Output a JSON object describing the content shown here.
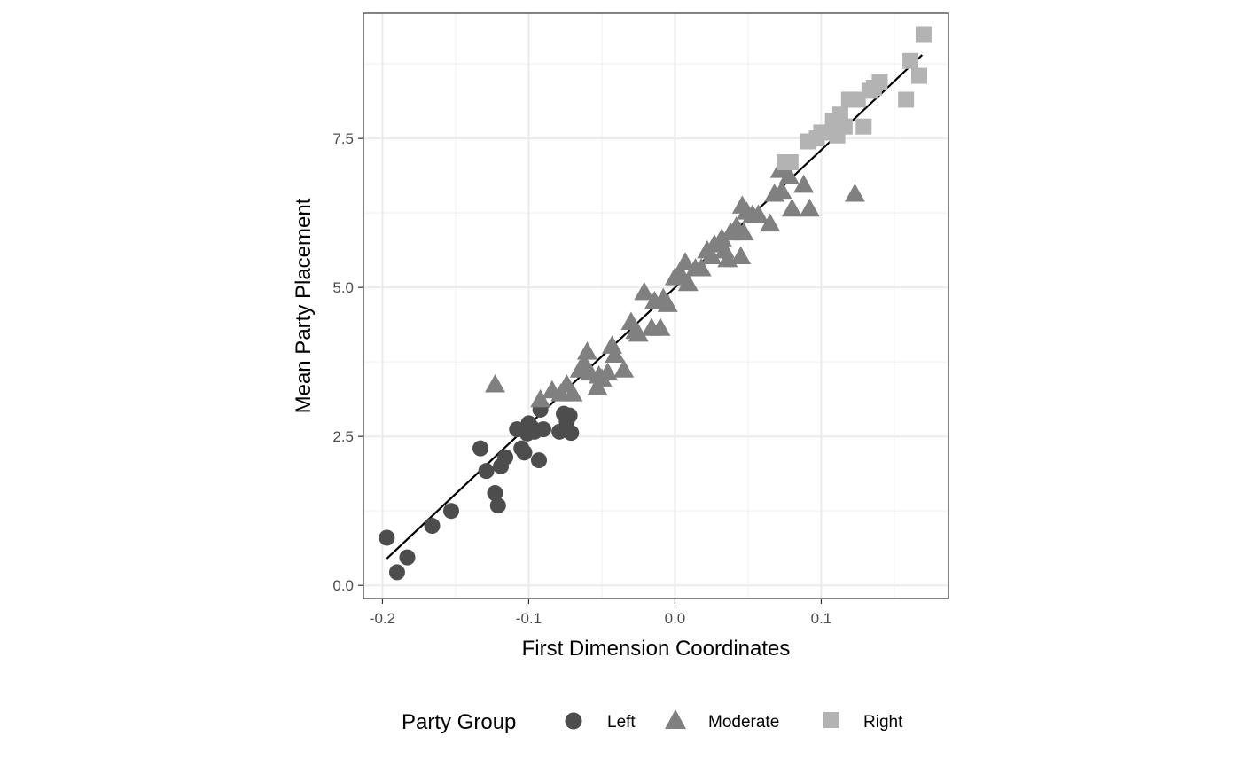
{
  "chart_data": {
    "type": "scatter",
    "title": "",
    "xlabel": "First Dimension Coordinates",
    "ylabel": "Mean Party Placement",
    "xlim": [
      -0.213,
      0.187
    ],
    "ylim": [
      -0.22,
      9.6
    ],
    "x_ticks": [
      -0.2,
      -0.1,
      0.0,
      0.1
    ],
    "x_tick_labels": [
      "-0.2",
      "-0.1",
      "0.0",
      "0.1"
    ],
    "y_ticks": [
      0.0,
      2.5,
      5.0,
      7.5
    ],
    "y_tick_labels": [
      "0.0",
      "2.5",
      "5.0",
      "7.5"
    ],
    "grid": true,
    "legend": {
      "title": "Party Group",
      "placement": "bottom",
      "entries": [
        "Left",
        "Moderate",
        "Right"
      ]
    },
    "fit_line": {
      "x": [
        -0.197,
        0.169
      ],
      "y": [
        0.45,
        8.9
      ],
      "color": "#000000"
    },
    "series": [
      {
        "name": "Left",
        "shape": "circle",
        "color": "#4d4d4d",
        "points": [
          [
            -0.197,
            0.8
          ],
          [
            -0.19,
            0.22
          ],
          [
            -0.183,
            0.47
          ],
          [
            -0.166,
            1.0
          ],
          [
            -0.153,
            1.25
          ],
          [
            -0.133,
            2.3
          ],
          [
            -0.129,
            1.92
          ],
          [
            -0.123,
            1.55
          ],
          [
            -0.121,
            1.34
          ],
          [
            -0.119,
            2.0
          ],
          [
            -0.116,
            2.15
          ],
          [
            -0.108,
            2.62
          ],
          [
            -0.105,
            2.3
          ],
          [
            -0.103,
            2.23
          ],
          [
            -0.101,
            2.55
          ],
          [
            -0.1,
            2.72
          ],
          [
            -0.098,
            2.65
          ],
          [
            -0.096,
            2.58
          ],
          [
            -0.093,
            2.1
          ],
          [
            -0.092,
            2.95
          ],
          [
            -0.09,
            2.62
          ],
          [
            -0.079,
            2.58
          ],
          [
            -0.076,
            2.88
          ],
          [
            -0.074,
            2.75
          ],
          [
            -0.072,
            2.85
          ],
          [
            -0.071,
            2.56
          ]
        ]
      },
      {
        "name": "Moderate",
        "shape": "triangle",
        "color": "#808080",
        "points": [
          [
            -0.123,
            3.35
          ],
          [
            -0.092,
            3.1
          ],
          [
            -0.084,
            3.25
          ],
          [
            -0.078,
            3.2
          ],
          [
            -0.074,
            3.35
          ],
          [
            -0.07,
            3.2
          ],
          [
            -0.065,
            3.6
          ],
          [
            -0.062,
            3.7
          ],
          [
            -0.06,
            3.9
          ],
          [
            -0.058,
            3.55
          ],
          [
            -0.053,
            3.3
          ],
          [
            -0.052,
            3.5
          ],
          [
            -0.05,
            3.45
          ],
          [
            -0.046,
            3.55
          ],
          [
            -0.043,
            4.0
          ],
          [
            -0.041,
            3.85
          ],
          [
            -0.035,
            3.6
          ],
          [
            -0.03,
            4.4
          ],
          [
            -0.027,
            4.25
          ],
          [
            -0.025,
            4.2
          ],
          [
            -0.021,
            4.9
          ],
          [
            -0.016,
            4.3
          ],
          [
            -0.014,
            4.75
          ],
          [
            -0.01,
            4.3
          ],
          [
            -0.008,
            4.8
          ],
          [
            -0.005,
            4.7
          ],
          [
            0.0,
            5.15
          ],
          [
            0.004,
            5.2
          ],
          [
            0.007,
            5.4
          ],
          [
            0.009,
            5.05
          ],
          [
            0.014,
            5.3
          ],
          [
            0.018,
            5.3
          ],
          [
            0.022,
            5.6
          ],
          [
            0.025,
            5.5
          ],
          [
            0.027,
            5.7
          ],
          [
            0.032,
            5.8
          ],
          [
            0.034,
            5.6
          ],
          [
            0.036,
            5.45
          ],
          [
            0.038,
            5.9
          ],
          [
            0.042,
            6.0
          ],
          [
            0.045,
            5.5
          ],
          [
            0.046,
            6.35
          ],
          [
            0.047,
            5.9
          ],
          [
            0.049,
            6.25
          ],
          [
            0.053,
            6.2
          ],
          [
            0.057,
            6.2
          ],
          [
            0.065,
            6.05
          ],
          [
            0.068,
            6.55
          ],
          [
            0.072,
            6.95
          ],
          [
            0.073,
            6.6
          ],
          [
            0.078,
            6.85
          ],
          [
            0.08,
            6.3
          ],
          [
            0.088,
            6.7
          ],
          [
            0.092,
            6.3
          ],
          [
            0.123,
            6.55
          ]
        ]
      },
      {
        "name": "Right",
        "shape": "square",
        "color": "#b3b3b3",
        "points": [
          [
            0.075,
            7.1
          ],
          [
            0.079,
            7.1
          ],
          [
            0.091,
            7.45
          ],
          [
            0.097,
            7.5
          ],
          [
            0.1,
            7.6
          ],
          [
            0.106,
            7.6
          ],
          [
            0.108,
            7.8
          ],
          [
            0.111,
            7.55
          ],
          [
            0.113,
            7.9
          ],
          [
            0.116,
            7.7
          ],
          [
            0.119,
            8.15
          ],
          [
            0.125,
            8.15
          ],
          [
            0.129,
            7.7
          ],
          [
            0.133,
            8.3
          ],
          [
            0.136,
            8.35
          ],
          [
            0.14,
            8.45
          ],
          [
            0.158,
            8.15
          ],
          [
            0.161,
            8.8
          ],
          [
            0.167,
            8.55
          ],
          [
            0.17,
            9.25
          ]
        ]
      }
    ]
  }
}
